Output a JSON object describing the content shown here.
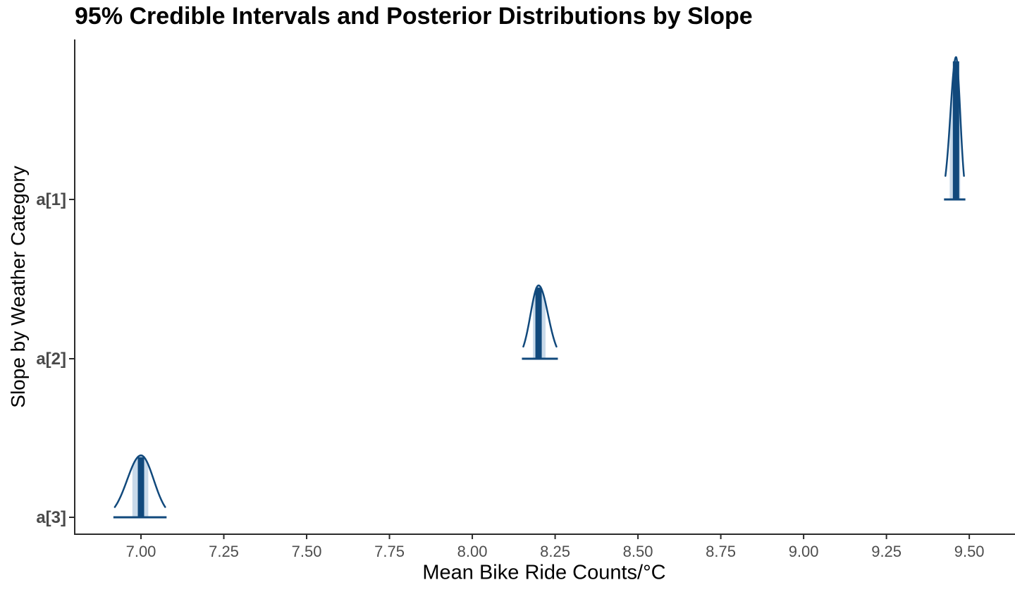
{
  "chart_data": {
    "type": "area",
    "subtype": "posterior-density-credible-intervals",
    "title": "95% Credible Intervals and Posterior Distributions by Slope",
    "xlabel": "Mean Bike Ride Counts/°C",
    "ylabel": "Slope by Weather Category",
    "xlim": [
      6.8,
      9.638
    ],
    "x_tick_labels": [
      "7.00",
      "7.25",
      "7.50",
      "7.75",
      "8.00",
      "8.25",
      "8.50",
      "8.75",
      "9.00",
      "9.25",
      "9.50"
    ],
    "categories": [
      "a[1]",
      "a[2]",
      "a[3]"
    ],
    "series": [
      {
        "name": "a[1]",
        "median": 9.46,
        "ci95": [
          9.441,
          9.473
        ],
        "density_range": [
          9.428,
          9.484
        ],
        "peak_rel": 1.0
      },
      {
        "name": "a[2]",
        "median": 8.2,
        "ci95": [
          8.183,
          8.221
        ],
        "density_range": [
          8.154,
          8.254
        ],
        "peak_rel": 0.515
      },
      {
        "name": "a[3]",
        "median": 7.0,
        "ci95": [
          6.974,
          7.022
        ],
        "density_range": [
          6.921,
          7.073
        ],
        "peak_rel": 0.435
      }
    ],
    "interval_probability": "95%",
    "grid": false,
    "legend": false,
    "colors": {
      "density_dark": "#11497C",
      "ci_fill_light": "#C9DAEA",
      "axis_line": "#2b2b2b",
      "x_tick_label": "#4D4D4D",
      "y_tick_label": "#4a4a4a",
      "title_text": "#000000"
    }
  }
}
